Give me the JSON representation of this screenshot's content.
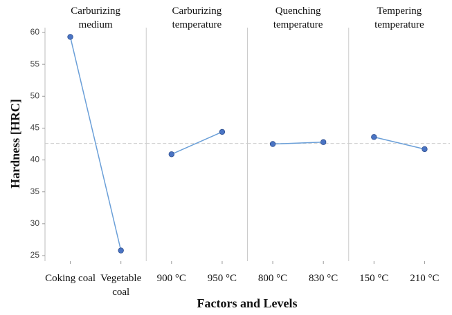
{
  "chart_data": {
    "type": "line",
    "ylabel": "Hardness [HRC]",
    "xlabel": "Factors and Levels",
    "ylim": [
      25,
      60
    ],
    "yticks": [
      25,
      30,
      35,
      40,
      45,
      50,
      55,
      60
    ],
    "ref_line": 42.6,
    "line_color": "#6a9fd8",
    "marker_color": "#4a74c4",
    "panels": [
      {
        "title": "Carburizing medium",
        "categories": [
          "Coking coal",
          "Vegetable coal"
        ],
        "values": [
          59.3,
          25.8
        ]
      },
      {
        "title": "Carburizing temperature",
        "categories": [
          "900 °C",
          "950 °C"
        ],
        "values": [
          40.9,
          44.4
        ]
      },
      {
        "title": "Quenching temperature",
        "categories": [
          "800 °C",
          "830 °C"
        ],
        "values": [
          42.5,
          42.8
        ]
      },
      {
        "title": "Tempering temperature",
        "categories": [
          "150 °C",
          "210 °C"
        ],
        "values": [
          43.6,
          41.7
        ]
      }
    ]
  }
}
